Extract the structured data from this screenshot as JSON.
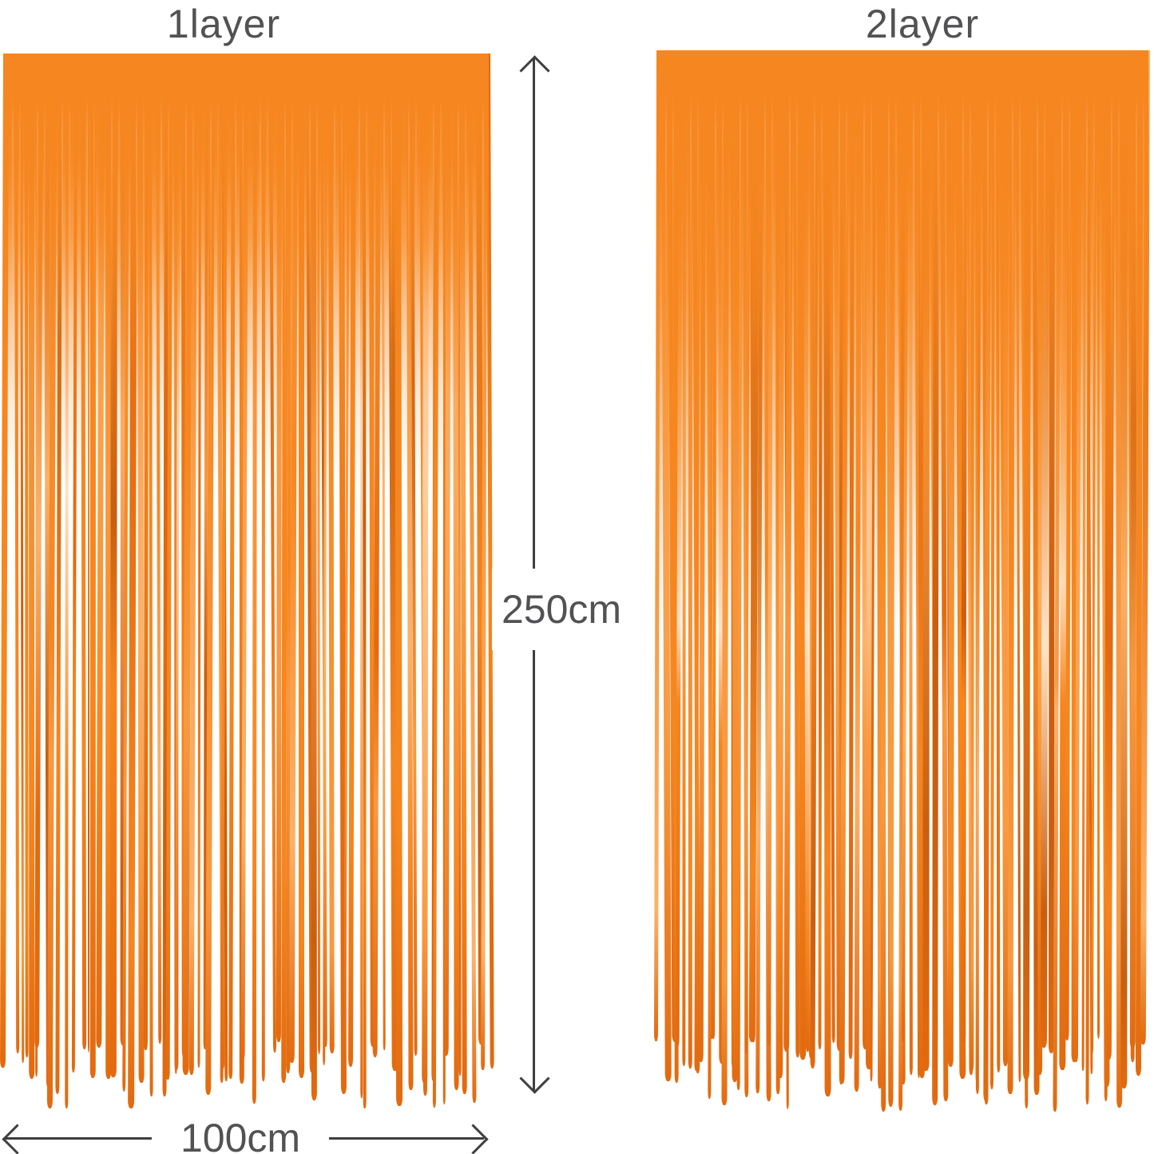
{
  "diagram": {
    "left_curtain": {
      "label": "1layer"
    },
    "right_curtain": {
      "label": "2layer"
    },
    "height_dimension": {
      "label": "250cm"
    },
    "width_dimension": {
      "label": "100cm"
    }
  },
  "colors": {
    "background": "#ffffff",
    "curtain_base": "#f6861f",
    "curtain_dark": "#e26a0f",
    "curtain_deep": "#c85f10",
    "curtain_light": "#f89a42",
    "curtain_pale": "#fbb269",
    "curtain_highlight": "#ffe3c4",
    "annotation_text": "#525254",
    "annotation_line": "#3f3f41"
  }
}
